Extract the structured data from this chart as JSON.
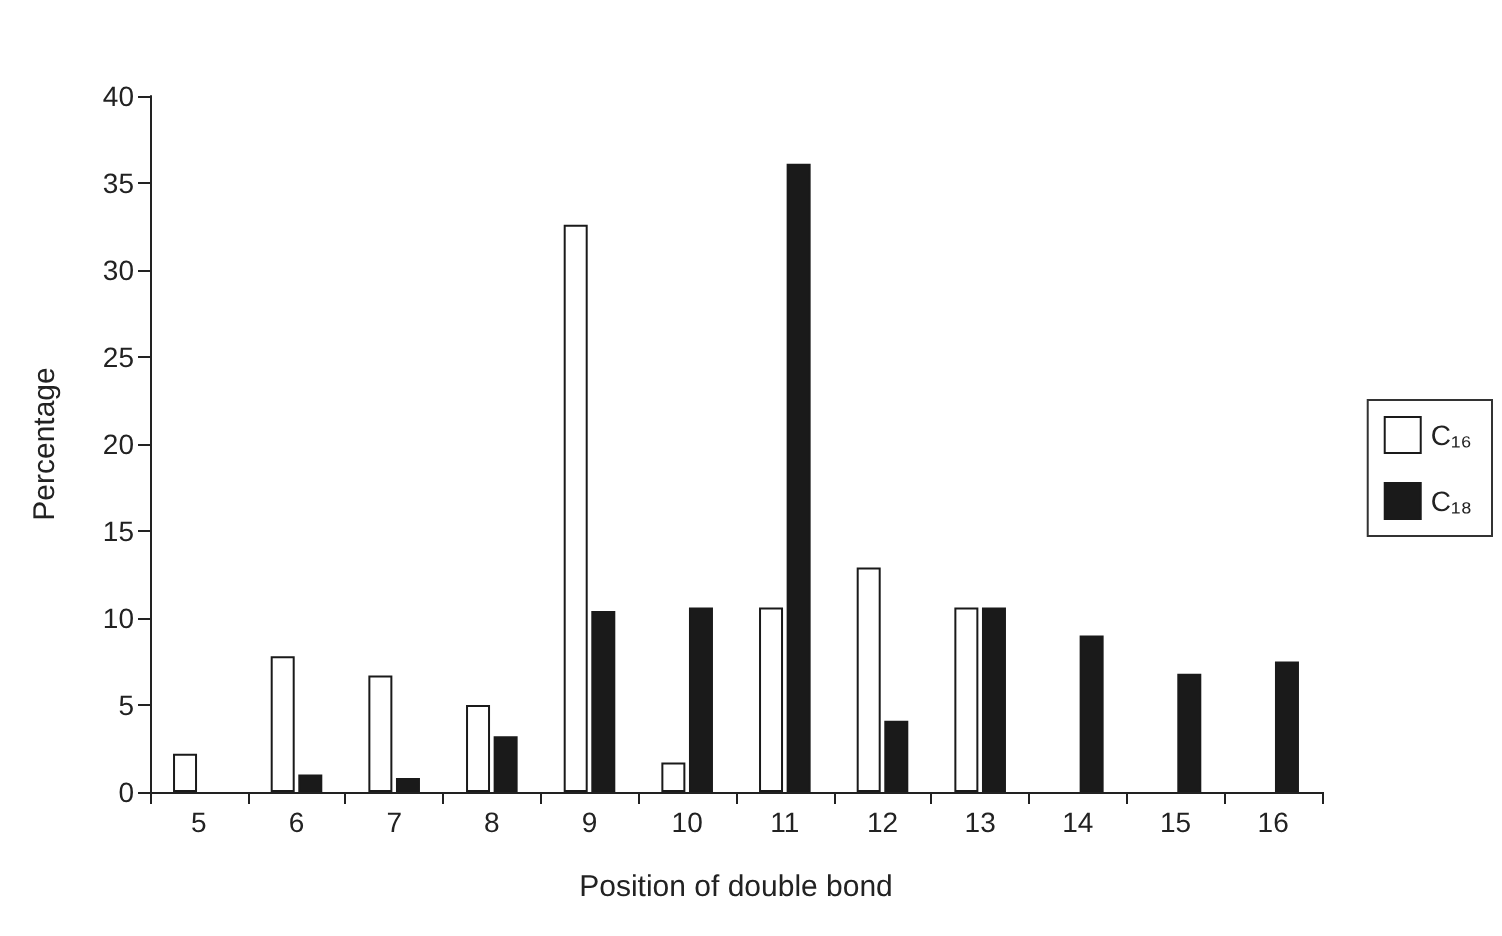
{
  "chart_data": {
    "type": "bar",
    "xlabel": "Position of double bond",
    "ylabel": "Percentage",
    "categories": [
      "5",
      "6",
      "7",
      "8",
      "9",
      "10",
      "11",
      "12",
      "13",
      "14",
      "15",
      "16"
    ],
    "series": [
      {
        "name": "C₁₆",
        "color": "#ffffff",
        "values": [
          2.2,
          7.8,
          6.7,
          5.0,
          32.6,
          1.7,
          10.6,
          12.9,
          10.6,
          null,
          null,
          null
        ]
      },
      {
        "name": "C₁₈",
        "color": "#1a1a1a",
        "values": [
          null,
          1.0,
          0.8,
          3.2,
          10.4,
          10.6,
          36.1,
          4.1,
          10.6,
          9.0,
          6.8,
          7.5
        ]
      }
    ],
    "ylim": [
      0,
      40
    ],
    "yticks": [
      0,
      5,
      10,
      15,
      20,
      25,
      30,
      35,
      40
    ],
    "grid": false,
    "legend": "right"
  }
}
